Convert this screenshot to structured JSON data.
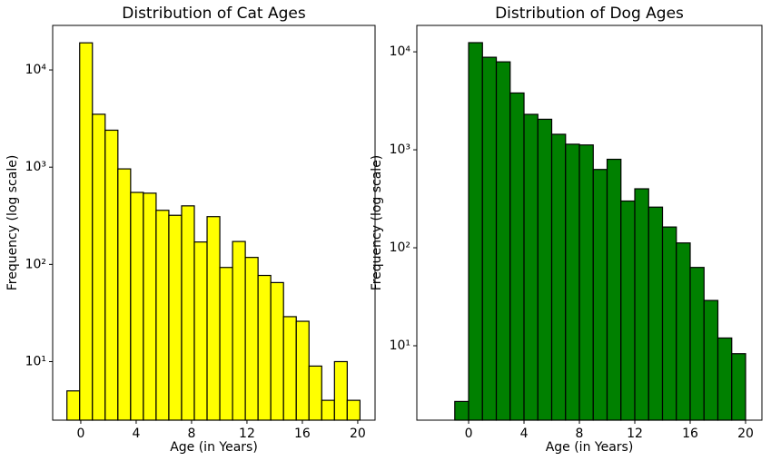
{
  "chart_data": [
    {
      "type": "histogram",
      "title": "Distribution of Cat Ages",
      "xlabel": "Age (in Years)",
      "ylabel": "Frequency (log scale)",
      "bins": [
        -1,
        -0.08,
        0.84,
        1.76,
        2.68,
        3.6,
        4.52,
        5.44,
        6.36,
        7.28,
        8.2,
        9.12,
        10.04,
        10.96,
        11.88,
        12.8,
        13.72,
        14.64,
        15.56,
        16.48,
        17.4,
        18.32,
        19.24,
        20.16
      ],
      "counts": [
        5,
        19000,
        3500,
        2400,
        960,
        550,
        540,
        360,
        320,
        400,
        170,
        310,
        93,
        172,
        118,
        77,
        65,
        29,
        26,
        9,
        4,
        10,
        4
      ],
      "color": "#ffff00",
      "edgecolor": "#000000",
      "yscale": "log",
      "xlim": [
        -2.03,
        21.25
      ],
      "xticks": [
        0,
        4,
        8,
        12,
        16,
        20
      ],
      "ylim": [
        2.5,
        28700
      ],
      "yticks": [
        {
          "value": 10,
          "label": "10¹"
        },
        {
          "value": 100,
          "label": "10²"
        },
        {
          "value": 1000,
          "label": "10³"
        },
        {
          "value": 10000,
          "label": "10⁴"
        }
      ]
    },
    {
      "type": "histogram",
      "title": "Distribution of Dog Ages",
      "xlabel": "Age (in Years)",
      "ylabel": "Frequency (log scale)",
      "bins": [
        -1,
        0,
        1,
        2,
        3,
        4,
        5,
        6,
        7,
        8,
        9,
        10,
        11,
        12,
        13,
        14,
        15,
        16,
        17,
        18,
        19,
        20
      ],
      "counts": [
        2.7,
        12400,
        8800,
        7900,
        3800,
        2300,
        2050,
        1440,
        1140,
        1120,
        630,
        800,
        300,
        400,
        260,
        163,
        112,
        63,
        29,
        12,
        8.3
      ],
      "color": "#008000",
      "edgecolor": "#000000",
      "yscale": "log",
      "xlim": [
        -3.74,
        21.18
      ],
      "xticks": [
        0,
        4,
        8,
        12,
        16,
        20
      ],
      "ylim": [
        1.74,
        18600
      ],
      "yticks": [
        {
          "value": 10,
          "label": "10¹"
        },
        {
          "value": 100,
          "label": "10²"
        },
        {
          "value": 1000,
          "label": "10³"
        },
        {
          "value": 10000,
          "label": "10⁴"
        }
      ]
    }
  ]
}
